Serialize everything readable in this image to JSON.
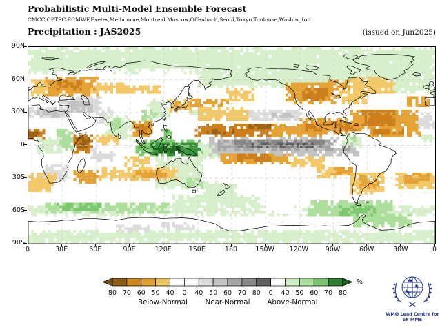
{
  "header": {
    "title": "Probabilistic Multi-Model Ensemble Forecast",
    "models": "CMCC,CPTEC,ECMWF,Exeter,Melbourne,Montreal,Moscow,Offenbach,Seoul,Tokyo,Toulouse,Washington",
    "variable_line": "Precipitation : JAS2025",
    "issued": "(issued on Jun2025)"
  },
  "map": {
    "x_ticks": [
      "0",
      "30E",
      "60E",
      "90E",
      "120E",
      "150E",
      "180",
      "150W",
      "120W",
      "90W",
      "60W",
      "30W",
      "0"
    ],
    "y_ticks": [
      "90N",
      "60N",
      "30N",
      "0",
      "30S",
      "60S",
      "90S"
    ],
    "y_lats": [
      90,
      60,
      30,
      0,
      -30,
      -60,
      -90
    ]
  },
  "chart_data": {
    "type": "heatmap",
    "title": "Probabilistic Multi-Model Ensemble Forecast",
    "variable": "Precipitation",
    "season": "JAS2025",
    "issued": "Jun2025",
    "projection": "equirectangular, Pacific-centered",
    "lon_range": [
      0,
      360
    ],
    "lat_range": [
      -90,
      90
    ],
    "grid_deg": 2.5,
    "categories": {
      "bn": "Below-Normal",
      "nn": "Near-Normal",
      "an": "Above-Normal"
    },
    "palette": {
      "bn40": "#f2c868",
      "bn50": "#e4a334",
      "bn60": "#cd7f1d",
      "bn70": "#9a6212",
      "bn80": "#6d4e0f",
      "nn40": "#dcdcdc",
      "nn50": "#c3c3c3",
      "nn60": "#a5a5a5",
      "nn70": "#878787",
      "nn80": "#626262",
      "an40": "#d7efcb",
      "an50": "#abdf9b",
      "an60": "#7bc96d",
      "an70": "#39953c",
      "an80": "#1f6e23",
      "white": "#ffffff"
    },
    "regions": [
      [
        "an40",
        0,
        360,
        66,
        90
      ],
      [
        "white",
        44,
        84,
        63,
        71
      ],
      [
        "white",
        96,
        142,
        64,
        71
      ],
      [
        "an40",
        150,
        245,
        52,
        70
      ],
      [
        "an40",
        240,
        348,
        56,
        76
      ],
      [
        "an40",
        318,
        360,
        48,
        64
      ],
      [
        "bn40",
        3,
        26,
        44,
        60
      ],
      [
        "bn50",
        16,
        62,
        46,
        62
      ],
      [
        "bn60",
        24,
        48,
        50,
        59
      ],
      [
        "bn40",
        54,
        92,
        48,
        58
      ],
      [
        "bn40",
        92,
        118,
        47,
        55
      ],
      [
        "nn40",
        0,
        32,
        24,
        36
      ],
      [
        "nn50",
        8,
        28,
        26,
        34
      ],
      [
        "nn40",
        28,
        64,
        28,
        44
      ],
      [
        "nn50",
        34,
        58,
        30,
        40
      ],
      [
        "nn40",
        60,
        74,
        20,
        34
      ],
      [
        "nn40",
        332,
        360,
        14,
        30
      ],
      [
        "an40",
        104,
        126,
        22,
        42
      ],
      [
        "an50",
        100,
        114,
        22,
        32
      ],
      [
        "an40",
        68,
        92,
        6,
        28
      ],
      [
        "an50",
        72,
        86,
        12,
        26
      ],
      [
        "bn50",
        92,
        110,
        8,
        22
      ],
      [
        "bn60",
        96,
        107,
        11,
        20
      ],
      [
        "bn40",
        124,
        147,
        31,
        43
      ],
      [
        "bn50",
        128,
        144,
        32,
        40
      ],
      [
        "bn50",
        145,
        177,
        34,
        42
      ],
      [
        "an40",
        143,
        163,
        25,
        33
      ],
      [
        "an50",
        26,
        43,
        -6,
        14
      ],
      [
        "an40",
        8,
        30,
        -8,
        8
      ],
      [
        "bn60",
        0,
        16,
        4,
        14
      ],
      [
        "bn70",
        0,
        9,
        6,
        12
      ],
      [
        "bn60",
        40,
        60,
        -7,
        10
      ],
      [
        "bn70",
        43,
        56,
        -2,
        8
      ],
      [
        "bn40",
        58,
        80,
        0,
        10
      ],
      [
        "nn40",
        12,
        34,
        -33,
        -17
      ],
      [
        "an40",
        348,
        360,
        3,
        12
      ],
      [
        "bn50",
        300,
        348,
        7,
        17
      ],
      [
        "bn60",
        306,
        332,
        9,
        15
      ],
      [
        "an60",
        94,
        155,
        -11,
        6
      ],
      [
        "an70",
        108,
        152,
        -9,
        3
      ],
      [
        "an80",
        116,
        136,
        -7,
        1
      ],
      [
        "an60",
        117,
        128,
        4,
        16
      ],
      [
        "an40",
        150,
        178,
        -13,
        2
      ],
      [
        "an40",
        113,
        154,
        -39,
        -11
      ],
      [
        "an50",
        138,
        154,
        -40,
        -29
      ],
      [
        "white",
        112,
        126,
        -31,
        -21
      ],
      [
        "an40",
        155,
        185,
        -50,
        -33
      ],
      [
        "nn40",
        55,
        78,
        -15,
        -3
      ],
      [
        "bn40",
        85,
        108,
        -20,
        -10
      ],
      [
        "bn40",
        62,
        132,
        -33,
        -21
      ],
      [
        "bn50",
        93,
        122,
        -29,
        -22
      ],
      [
        "bn50",
        40,
        62,
        -34,
        -23
      ],
      [
        "bn40",
        0,
        24,
        -43,
        -25
      ],
      [
        "bn40",
        326,
        360,
        -40,
        -24
      ],
      [
        "bn50",
        333,
        354,
        -35,
        -26
      ],
      [
        "bn40",
        150,
        196,
        22,
        34
      ],
      [
        "nn40",
        196,
        242,
        22,
        33
      ],
      [
        "nn50",
        214,
        238,
        24,
        31
      ],
      [
        "bn40",
        174,
        200,
        40,
        52
      ],
      [
        "bn60",
        148,
        218,
        7,
        20
      ],
      [
        "bn70",
        158,
        182,
        9,
        16
      ],
      [
        "bn70",
        196,
        216,
        15,
        21
      ],
      [
        "bn50",
        214,
        262,
        8,
        20
      ],
      [
        "bn50",
        240,
        296,
        11,
        24
      ],
      [
        "bn60",
        244,
        260,
        13,
        20
      ],
      [
        "bn60",
        268,
        290,
        13,
        22
      ],
      [
        "nn50",
        160,
        292,
        -9,
        7
      ],
      [
        "nn60",
        168,
        286,
        -4,
        5
      ],
      [
        "nn70",
        182,
        262,
        -3,
        4
      ],
      [
        "nn80",
        198,
        252,
        -2,
        3
      ],
      [
        "white",
        268,
        280,
        -2,
        4
      ],
      [
        "bn50",
        170,
        232,
        -17,
        -7
      ],
      [
        "bn60",
        186,
        216,
        -15,
        -8
      ],
      [
        "bn40",
        232,
        262,
        -21,
        -9
      ],
      [
        "bn40",
        256,
        290,
        -29,
        -19
      ],
      [
        "bn50",
        268,
        288,
        -27,
        -20
      ],
      [
        "bn50",
        228,
        272,
        37,
        58
      ],
      [
        "bn60",
        242,
        264,
        41,
        53
      ],
      [
        "bn50",
        262,
        284,
        50,
        60
      ],
      [
        "bn40",
        272,
        300,
        38,
        50
      ],
      [
        "bn40",
        284,
        324,
        48,
        62
      ],
      [
        "bn50",
        286,
        344,
        16,
        33
      ],
      [
        "bn60",
        296,
        326,
        18,
        32
      ],
      [
        "bn50",
        336,
        356,
        34,
        45
      ],
      [
        "an40",
        278,
        294,
        -2,
        10
      ],
      [
        "an50",
        283,
        291,
        2,
        9
      ],
      [
        "bn40",
        284,
        316,
        -45,
        -26
      ],
      [
        "bn50",
        292,
        310,
        -40,
        -28
      ],
      [
        "an40",
        0,
        360,
        -66,
        -55
      ],
      [
        "an50",
        14,
        124,
        -63,
        -52
      ],
      [
        "an60",
        26,
        64,
        -61,
        -53
      ],
      [
        "an40",
        128,
        204,
        -58,
        -44
      ],
      [
        "white",
        208,
        248,
        -64,
        -52
      ],
      [
        "an50",
        248,
        322,
        -66,
        -50
      ],
      [
        "an60",
        274,
        308,
        -64,
        -54
      ],
      [
        "an50",
        288,
        340,
        -76,
        -63
      ],
      [
        "an40",
        0,
        360,
        -89,
        -78
      ],
      [
        "nn40",
        78,
        110,
        -79,
        -72
      ],
      [
        "nn40",
        118,
        148,
        -77,
        -71
      ]
    ]
  },
  "colorbar": {
    "tick_values": [
      "80",
      "70",
      "60",
      "50",
      "40",
      "0",
      "40",
      "50",
      "60",
      "70",
      "80",
      "0",
      "40",
      "50",
      "60",
      "70",
      "80"
    ],
    "segment_colors": [
      "#8a5c13",
      "#cc8419",
      "#e0a02e",
      "#eec45f",
      "#ffffff",
      "#ffffff",
      "#dcdcdc",
      "#c3c3c3",
      "#a5a5a5",
      "#878787",
      "#5f5f5f",
      "#ffffff",
      "#cdeec3",
      "#a8e09b",
      "#77c46c",
      "#2e7d32"
    ],
    "left_arrow_color": "#6d4e0f",
    "right_arrow_color": "#1b5e20",
    "group_labels": [
      "Below-Normal",
      "Near-Normal",
      "Above-Normal"
    ],
    "unit": "%"
  },
  "logo": {
    "line1": "WMO Lead Centre for",
    "line2": "SF MME",
    "color": "#2a3f8f"
  }
}
